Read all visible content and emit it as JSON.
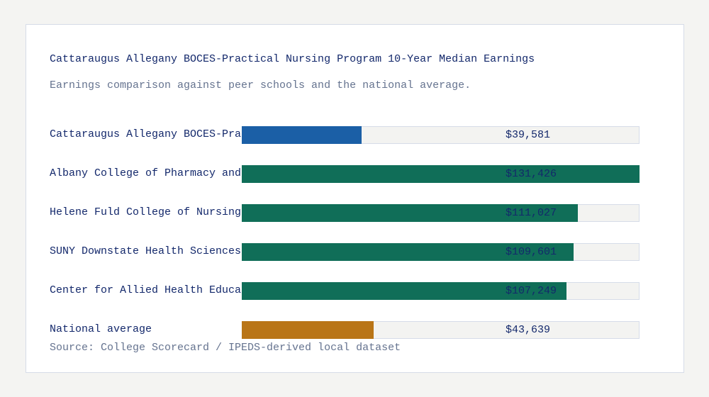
{
  "chart_data": {
    "type": "bar",
    "orientation": "horizontal",
    "title": "Cattaraugus Allegany BOCES-Practical Nursing Program 10-Year Median Earnings",
    "subtitle": "Earnings comparison against peer schools and the national average.",
    "source": "Source: College Scorecard / IPEDS-derived local dataset",
    "xlim": [
      0,
      131426
    ],
    "grid": false,
    "categories": [
      "Cattaraugus Allegany BOCES-Pra",
      "Albany College of Pharmacy and",
      "Helene Fuld College of Nursing",
      "SUNY Downstate Health Sciences",
      "Center for Allied Health Educa",
      "National average"
    ],
    "values": [
      39581,
      131426,
      111027,
      109601,
      107249,
      43639
    ],
    "value_labels": [
      "$39,581",
      "$131,426",
      "$111,027",
      "$109,601",
      "$107,249",
      "$43,639"
    ],
    "bar_colors": [
      "#1b5fa6",
      "#106e58",
      "#106e58",
      "#106e58",
      "#106e58",
      "#b97517"
    ]
  }
}
